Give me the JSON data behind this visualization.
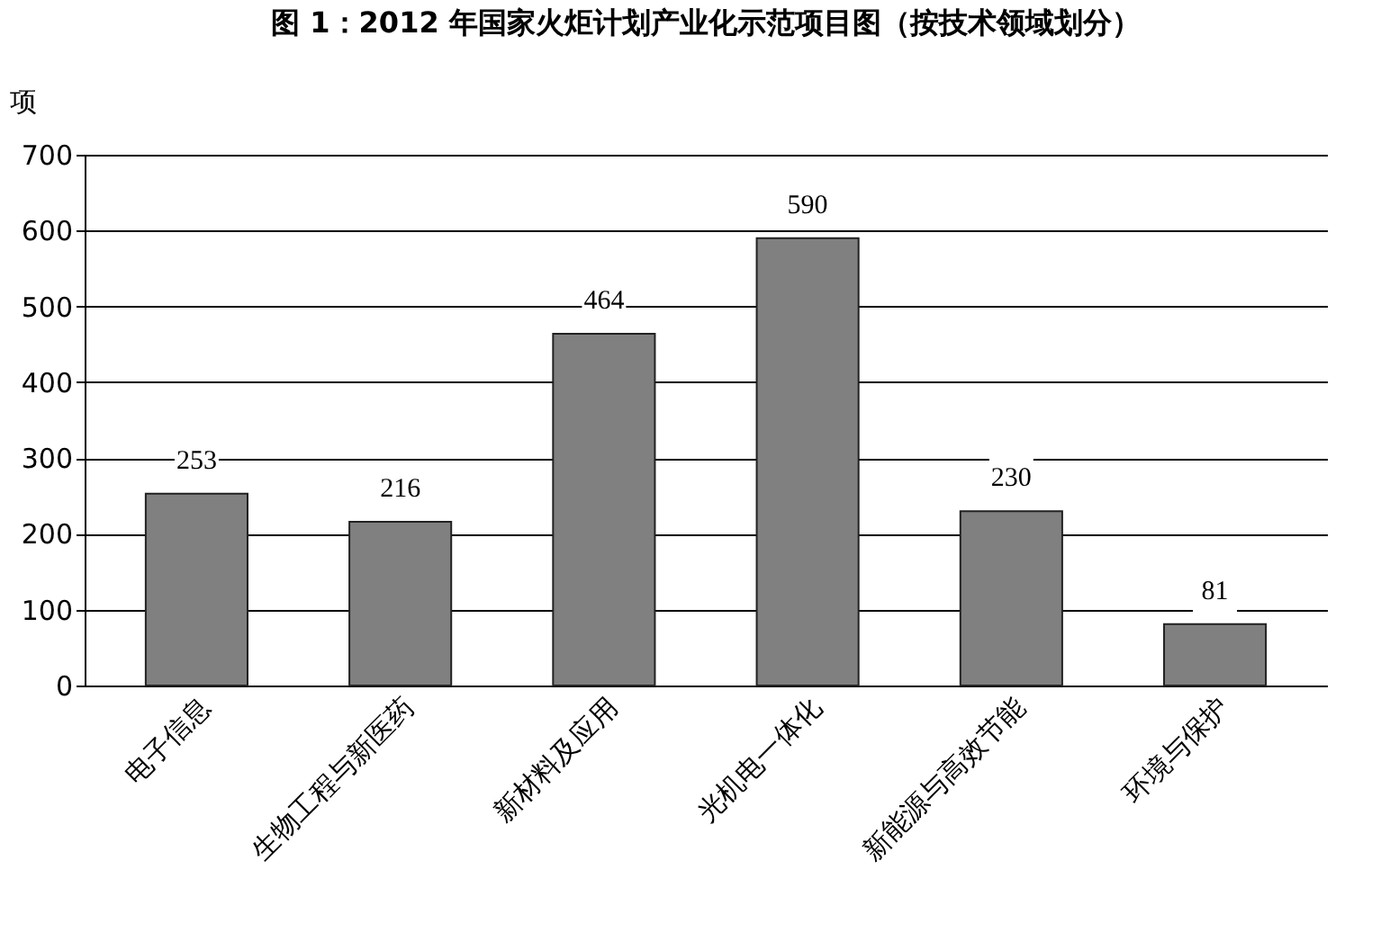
{
  "chart_data": {
    "type": "bar",
    "title": "图 1：2012 年国家火炬计划产业化示范项目图（按技术领域划分）",
    "ylabel": "项",
    "categories": [
      "电子信息",
      "生物工程与新医药",
      "新材料及应用",
      "光机电一体化",
      "新能源与高效节能",
      "环境与保护"
    ],
    "values": [
      253,
      216,
      464,
      590,
      230,
      81
    ],
    "color": "#808080",
    "ylim": [
      0,
      700
    ],
    "yticks": [
      0,
      100,
      200,
      300,
      400,
      500,
      600,
      700
    ],
    "grid": "y",
    "data_labels": true
  }
}
